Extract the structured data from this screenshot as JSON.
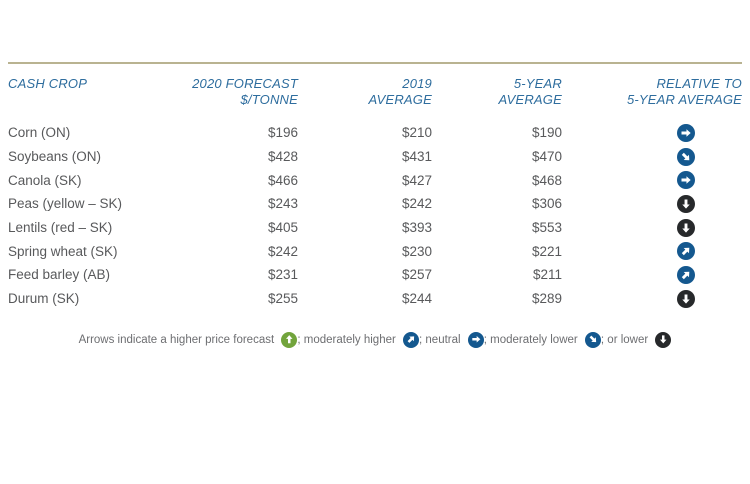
{
  "chart_data": {
    "type": "table",
    "columns": [
      {
        "line1": "CASH CROP",
        "line2": ""
      },
      {
        "line1": "2020 FORECAST",
        "line2": "$/TONNE"
      },
      {
        "line1": "2019",
        "line2": "AVERAGE"
      },
      {
        "line1": "5-YEAR",
        "line2": "AVERAGE"
      },
      {
        "line1": "RELATIVE TO",
        "line2": "5-YEAR AVERAGE"
      }
    ],
    "rows": [
      {
        "crop": "Corn (ON)",
        "forecast_2020": "$196",
        "avg_2019": "$210",
        "avg_5yr": "$190",
        "trend": "neutral"
      },
      {
        "crop": "Soybeans (ON)",
        "forecast_2020": "$428",
        "avg_2019": "$431",
        "avg_5yr": "$470",
        "trend": "moderately-lower"
      },
      {
        "crop": "Canola (SK)",
        "forecast_2020": "$466",
        "avg_2019": "$427",
        "avg_5yr": "$468",
        "trend": "neutral"
      },
      {
        "crop": "Peas (yellow – SK)",
        "forecast_2020": "$243",
        "avg_2019": "$242",
        "avg_5yr": "$306",
        "trend": "lower"
      },
      {
        "crop": "Lentils (red – SK)",
        "forecast_2020": "$405",
        "avg_2019": "$393",
        "avg_5yr": "$553",
        "trend": "lower"
      },
      {
        "crop": "Spring wheat (SK)",
        "forecast_2020": "$242",
        "avg_2019": "$230",
        "avg_5yr": "$221",
        "trend": "moderately-higher"
      },
      {
        "crop": "Feed barley (AB)",
        "forecast_2020": "$231",
        "avg_2019": "$257",
        "avg_5yr": "$211",
        "trend": "moderately-higher"
      },
      {
        "crop": "Durum (SK)",
        "forecast_2020": "$255",
        "avg_2019": "$244",
        "avg_5yr": "$289",
        "trend": "lower"
      }
    ]
  },
  "legend": {
    "segments": [
      {
        "text": "Arrows indicate a higher price forecast ",
        "trend": "higher"
      },
      {
        "text": "; moderately higher ",
        "trend": "moderately-higher"
      },
      {
        "text": "; neutral ",
        "trend": "neutral"
      },
      {
        "text": "; moderately lower ",
        "trend": "moderately-lower"
      },
      {
        "text": "; or lower ",
        "trend": "lower"
      }
    ]
  },
  "colors": {
    "header_text": "#2e6d9e",
    "body_text": "#58595b",
    "rule": "#b9b391",
    "arrow_blue": "#14588f",
    "arrow_black": "#27292b",
    "arrow_green": "#72a43c"
  }
}
